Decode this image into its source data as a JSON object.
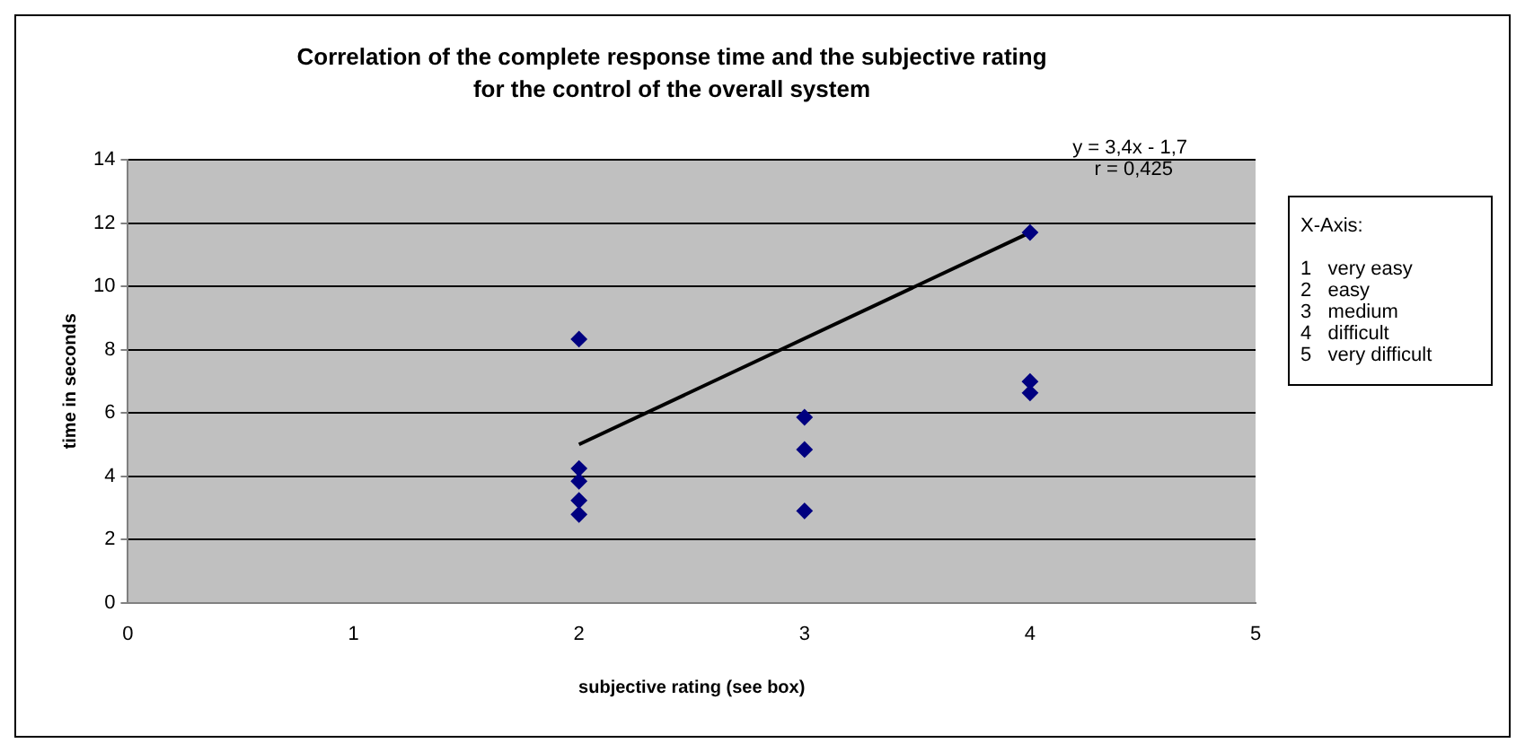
{
  "chart_data": {
    "type": "scatter",
    "title": "Correlation of the complete response time and the subjective rating for the control of the overall system",
    "xlabel": "subjective rating (see box)",
    "ylabel": "time in seconds",
    "series": [
      {
        "color": "#000080",
        "marker": "diamond",
        "x": [
          2,
          2,
          2,
          2,
          2,
          3,
          3,
          3,
          4,
          4,
          4
        ],
        "values": [
          8.33,
          4.24,
          3.84,
          3.23,
          2.79,
          5.86,
          4.84,
          2.9,
          11.7,
          6.99,
          6.63
        ]
      },
      {
        "type": "line",
        "color": "#000000",
        "marker": "none",
        "x": [
          2,
          4
        ],
        "values": [
          5.0,
          11.7
        ]
      }
    ],
    "annotations": [
      "y = 3,4x - 1,7",
      "r = 0,425",
      "X-Axis:",
      "1   very easy",
      "2   easy",
      "3   medium",
      "4   difficult",
      "5   very difficult"
    ],
    "xlim": [
      0,
      5
    ],
    "xticks": [
      0,
      1,
      2,
      3,
      4,
      5
    ],
    "ylim": [
      0,
      14
    ],
    "yticks": [
      0,
      2,
      4,
      6,
      8,
      10,
      12,
      14
    ],
    "grid": "y",
    "legend": false
  }
}
